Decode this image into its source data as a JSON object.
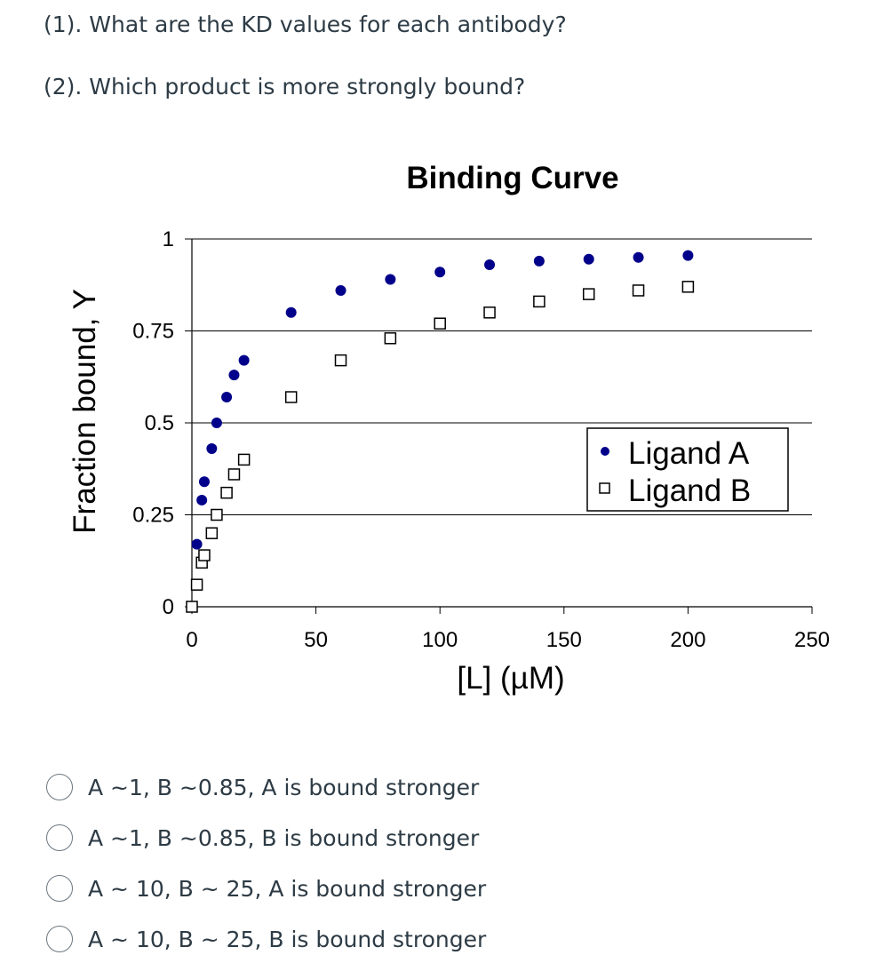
{
  "questions": [
    "(1). What are the KD values for each antibody?",
    "(2). Which product is more strongly bound?"
  ],
  "chart_data": {
    "type": "scatter",
    "title": "Binding Curve",
    "xlabel": "[L] (µM)",
    "ylabel": "Fraction bound, Y",
    "xlim": [
      0,
      250
    ],
    "ylim": [
      0,
      1
    ],
    "xticks": [
      "0",
      "50",
      "100",
      "150",
      "200",
      "250"
    ],
    "yticks": [
      "0",
      "0.25",
      "0.5",
      "0.75",
      "1"
    ],
    "grid": "horizontal",
    "legend_position": "right",
    "series": [
      {
        "name": "Ligand A",
        "marker": "filled-circle",
        "color": "#00008b",
        "x": [
          2,
          4,
          5,
          8,
          10,
          14,
          17,
          21,
          40,
          60,
          80,
          100,
          120,
          140,
          160,
          180,
          200
        ],
        "y": [
          0.17,
          0.29,
          0.34,
          0.43,
          0.5,
          0.57,
          0.63,
          0.67,
          0.8,
          0.86,
          0.89,
          0.91,
          0.93,
          0.94,
          0.945,
          0.95,
          0.955
        ]
      },
      {
        "name": "Ligand B",
        "marker": "open-square",
        "color": "#000000",
        "x": [
          0,
          2,
          4,
          5,
          8,
          10,
          14,
          17,
          21,
          40,
          60,
          80,
          100,
          120,
          140,
          160,
          180,
          200
        ],
        "y": [
          0.0,
          0.06,
          0.12,
          0.14,
          0.2,
          0.25,
          0.31,
          0.36,
          0.4,
          0.57,
          0.67,
          0.73,
          0.77,
          0.8,
          0.83,
          0.85,
          0.86,
          0.87
        ]
      }
    ]
  },
  "options": [
    "A ~1, B ~0.85, A is bound stronger",
    "A ~1, B ~0.85, B is bound stronger",
    "A ~ 10, B ~ 25, A is bound stronger",
    "A ~ 10, B ~ 25, B is bound stronger"
  ]
}
